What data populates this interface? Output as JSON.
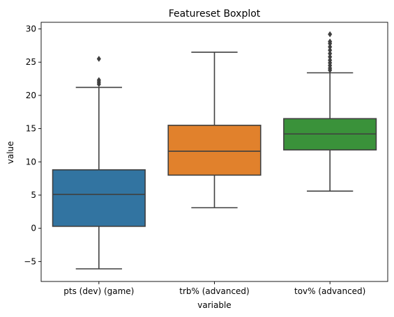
{
  "chart_data": {
    "type": "boxplot",
    "title": "Featureset Boxplot",
    "xlabel": "variable",
    "ylabel": "value",
    "ylim": [
      -8,
      31
    ],
    "yticks": [
      -5,
      0,
      5,
      10,
      15,
      20,
      25,
      30
    ],
    "ytick_labels": [
      "−5",
      "0",
      "5",
      "10",
      "15",
      "20",
      "25",
      "30"
    ],
    "grid": false,
    "categories": [
      "pts (dev) (game)",
      "trb% (advanced)",
      "tov% (advanced)"
    ],
    "boxes": [
      {
        "name": "pts (dev) (game)",
        "color": "#3274a1",
        "whisker_low": -6.1,
        "q1": 0.3,
        "median": 5.1,
        "q3": 8.8,
        "whisker_high": 21.2,
        "outliers": [
          21.7,
          22.0,
          22.3,
          25.5
        ]
      },
      {
        "name": "trb% (advanced)",
        "color": "#e1812c",
        "whisker_low": 3.1,
        "q1": 8.0,
        "median": 11.6,
        "q3": 15.5,
        "whisker_high": 26.5,
        "outliers": []
      },
      {
        "name": "tov% (advanced)",
        "color": "#3a923a",
        "whisker_low": 5.6,
        "q1": 11.8,
        "median": 14.2,
        "q3": 16.5,
        "whisker_high": 23.4,
        "outliers": [
          23.8,
          24.1,
          24.5,
          24.9,
          25.3,
          25.8,
          26.3,
          26.8,
          27.3,
          27.8,
          28.1,
          29.2
        ]
      }
    ],
    "colors": {
      "line": "#3f3f3f",
      "frame": "#000000"
    }
  }
}
